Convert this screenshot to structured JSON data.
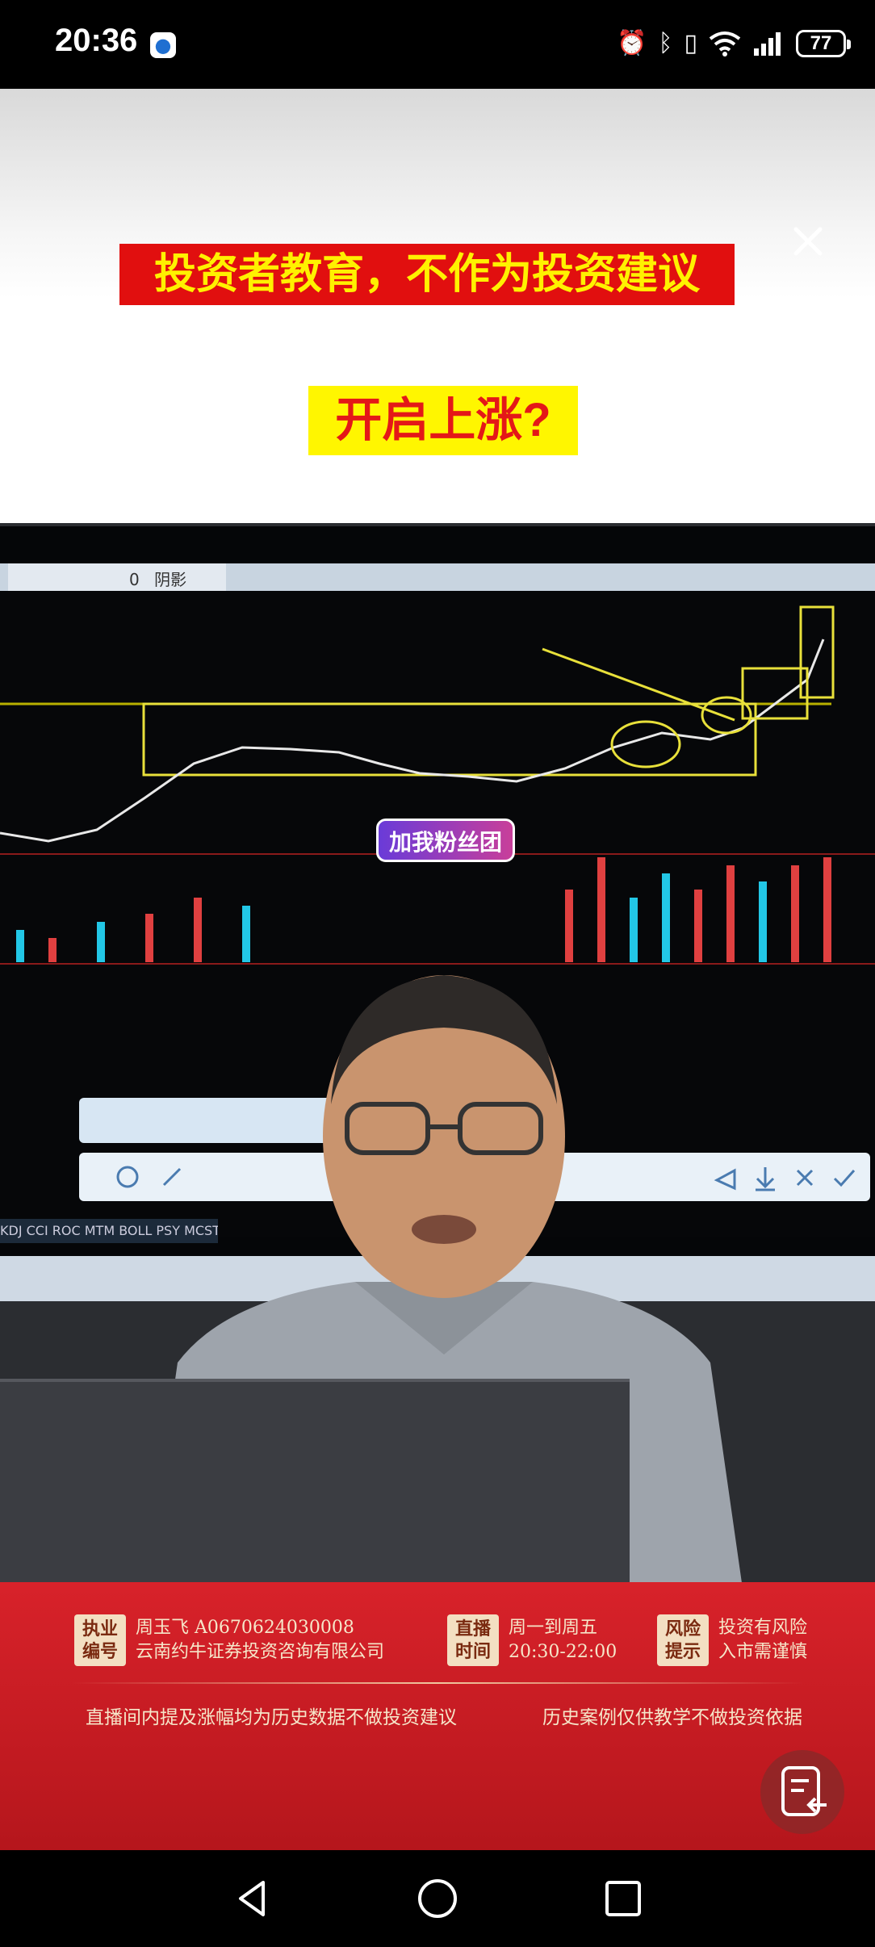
{
  "status_bar": {
    "time": "20:36",
    "battery": "77"
  },
  "banner": {
    "disclaimer": "投资者教育，不作为投资建议",
    "headline": "开启上涨?"
  },
  "video": {
    "fans_badge": "加我粉丝团",
    "toolbar_chip_text": "阴影",
    "toolbar_chip_value": "0"
  },
  "info": {
    "license_tag": "执业\n编号",
    "license_line1": "周玉飞 A0670624030008",
    "license_line2": "云南约牛证券投资咨询有限公司",
    "live_tag": "直播\n时间",
    "live_line1": "周一到周五",
    "live_line2": "20:30-22:00",
    "risk_tag": "风险\n提示",
    "risk_line1": "投资有风险",
    "risk_line2": "入市需谨慎",
    "note_left": "直播间内提及涨幅均为历史数据不做投资建议",
    "note_right": "历史案例仅供教学不做投资依据"
  },
  "colors": {
    "disclaimer_bg": "#e10f0f",
    "disclaimer_text": "#fff100",
    "headline_bg": "#fff600",
    "headline_text": "#e41818",
    "panel_red": "#d8222a"
  }
}
